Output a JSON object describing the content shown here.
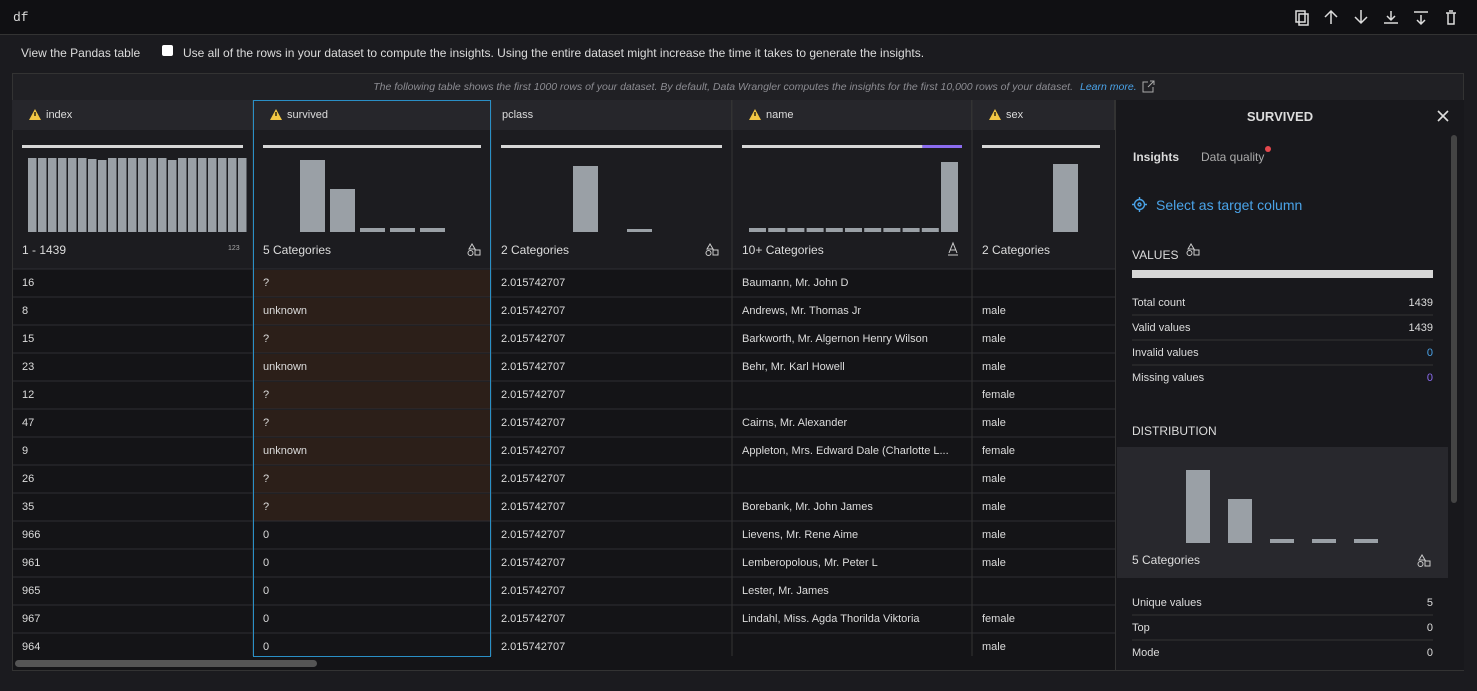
{
  "toolbar": {
    "title": "df"
  },
  "options": {
    "label": "View the Pandas table",
    "checkbox_label": "Use all of the rows in your dataset to compute the insights. Using the entire dataset might increase the time it takes to generate the insights."
  },
  "table": {
    "note": "The following table shows the first 1000 rows of your dataset. By default, Data Wrangler computes the insights for the first 10,000 rows of your dataset.",
    "link": "Learn more.",
    "columns": [
      {
        "name": "index",
        "warning": true,
        "summary": "1 - 1439",
        "badge": "123",
        "valid_fraction": 1,
        "histogram": [
          74,
          74,
          74,
          74,
          74,
          74,
          73,
          72,
          74,
          74,
          74,
          74,
          74,
          74,
          72,
          74,
          74,
          74,
          74,
          74,
          74,
          74
        ]
      },
      {
        "name": "survived",
        "warning": true,
        "summary": "5 Categories",
        "valid_fraction": 1,
        "histogram": [
          72,
          43,
          4,
          4,
          4
        ]
      },
      {
        "name": "pclass",
        "warning": false,
        "summary": "2 Categories",
        "valid_fraction": 1,
        "histogram": [
          66,
          3
        ]
      },
      {
        "name": "name",
        "warning": true,
        "summary": "10+ Categories",
        "valid_fraction": 0.82,
        "histogram": [
          4,
          4,
          4,
          4,
          4,
          4,
          4,
          4,
          4,
          4,
          70
        ]
      },
      {
        "name": "sex",
        "warning": true,
        "summary": "2 Categories",
        "valid_fraction": 1,
        "histogram": [
          68
        ]
      }
    ],
    "rows": [
      [
        "16",
        "?",
        "2.015742707",
        "Baumann, Mr. John D",
        null
      ],
      [
        "8",
        "unknown",
        "2.015742707",
        "Andrews, Mr. Thomas Jr",
        "male"
      ],
      [
        "15",
        "?",
        "2.015742707",
        "Barkworth, Mr. Algernon Henry Wilson",
        "male"
      ],
      [
        "23",
        "unknown",
        "2.015742707",
        "Behr, Mr. Karl Howell",
        "male"
      ],
      [
        "12",
        "?",
        "2.015742707",
        null,
        "female"
      ],
      [
        "47",
        "?",
        "2.015742707",
        "Cairns, Mr. Alexander",
        "male"
      ],
      [
        "9",
        "unknown",
        "2.015742707",
        "Appleton, Mrs. Edward Dale (Charlotte L...",
        "female"
      ],
      [
        "26",
        "?",
        "2.015742707",
        null,
        "male"
      ],
      [
        "35",
        "?",
        "2.015742707",
        "Borebank, Mr. John James",
        "male"
      ],
      [
        "966",
        "0",
        "2.015742707",
        "Lievens, Mr. Rene Aime",
        "male"
      ],
      [
        "961",
        "0",
        "2.015742707",
        "Lemberopolous, Mr. Peter L",
        "male"
      ],
      [
        "965",
        "0",
        "2.015742707",
        "Lester, Mr. James",
        null
      ],
      [
        "967",
        "0",
        "2.015742707",
        "Lindahl, Miss. Agda Thorilda Viktoria",
        "female"
      ],
      [
        "964",
        "0",
        "2.015742707",
        null,
        "male"
      ]
    ]
  },
  "panel": {
    "title": "SURVIVED",
    "tabs": [
      "Insights",
      "Data quality"
    ],
    "action": "Select as target column",
    "values_heading": "VALUES",
    "stats": [
      {
        "label": "Total count",
        "value": 1439,
        "color": "#dddddd"
      },
      {
        "label": "Valid values",
        "value": 1439,
        "color": "#dddddd"
      },
      {
        "label": "Invalid values",
        "value": 0,
        "color": "#4aa3e8"
      },
      {
        "label": "Missing values",
        "value": 0,
        "color": "#8b6cf0"
      }
    ],
    "distribution_heading": "DISTRIBUTION",
    "distribution": [
      73,
      44,
      4,
      4,
      4
    ],
    "distribution_label": "5 Categories",
    "summary_stats": [
      {
        "label": "Unique values",
        "value": 5
      },
      {
        "label": "Top",
        "value": 0
      },
      {
        "label": "Mode",
        "value": 0
      }
    ]
  }
}
